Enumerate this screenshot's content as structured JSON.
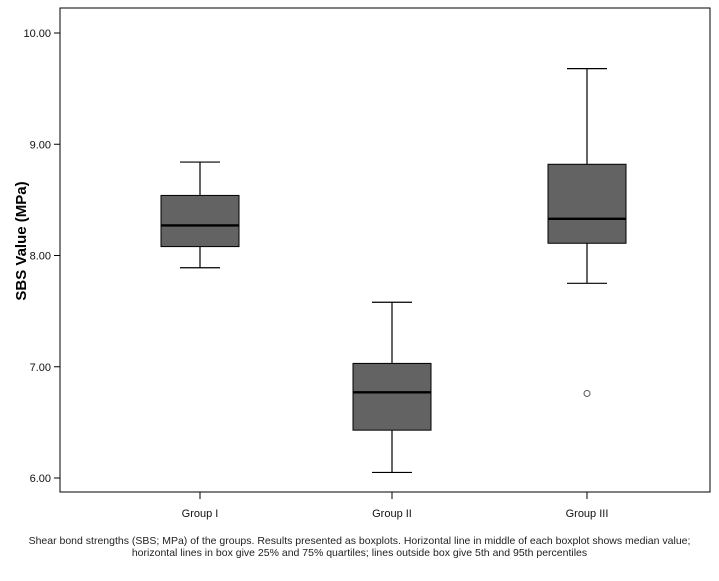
{
  "chart_data": {
    "type": "boxplot",
    "title": "",
    "xlabel": "",
    "ylabel": "SBS Value (MPa)",
    "ylim": [
      5.85,
      10.15
    ],
    "yticks": [
      "6.00",
      "7.00",
      "8.00",
      "9.00",
      "10.00"
    ],
    "ytick_values": [
      6,
      7,
      8,
      9,
      10
    ],
    "grid": false,
    "legend": "none",
    "box_color": "#636363",
    "categories": [
      "Group I",
      "Group II",
      "Group III"
    ],
    "boxes": [
      {
        "name": "Group I",
        "whisker_low": 7.89,
        "q1": 8.08,
        "median": 8.27,
        "q3": 8.54,
        "whisker_high": 8.84,
        "outliers": []
      },
      {
        "name": "Group II",
        "whisker_low": 6.05,
        "q1": 6.43,
        "median": 6.77,
        "q3": 7.03,
        "whisker_high": 7.58,
        "outliers": []
      },
      {
        "name": "Group III",
        "whisker_low": 7.75,
        "q1": 8.11,
        "median": 8.33,
        "q3": 8.82,
        "whisker_high": 9.68,
        "outliers": [
          6.76
        ]
      }
    ]
  },
  "caption": "Shear bond strengths (SBS; MPa) of the groups. Results presented as boxplots. Horizontal line in middle of each boxplot shows median value; horizontal lines in box give 25% and 75% quartiles; lines outside box give 5th and 95th percentiles"
}
